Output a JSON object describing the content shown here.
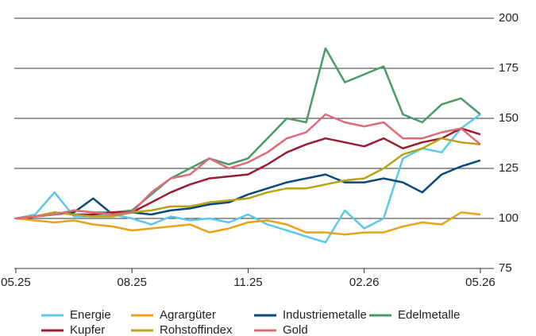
{
  "chart_data": {
    "type": "line",
    "x": [
      0,
      0.5,
      1,
      1.5,
      2,
      2.5,
      3,
      3.5,
      4,
      4.5,
      5,
      5.5,
      6,
      6.5,
      7,
      7.5,
      8,
      8.5,
      9,
      9.5,
      10,
      10.5,
      11,
      11.5,
      12
    ],
    "xlim": [
      -0.04,
      12.35
    ],
    "xticks": [
      {
        "value": 0,
        "label": "05.25"
      },
      {
        "value": 3,
        "label": "08.25"
      },
      {
        "value": 6,
        "label": "11.25"
      },
      {
        "value": 9,
        "label": "02.26"
      },
      {
        "value": 12,
        "label": "05.26"
      }
    ],
    "ylim": [
      75,
      200
    ],
    "yticks": [
      75,
      100,
      125,
      150,
      175,
      200
    ],
    "grid": true,
    "series": [
      {
        "name": "Energie",
        "color": "#5bc8ee",
        "values": [
          100,
          102,
          113,
          101,
          101,
          102,
          100,
          97,
          101,
          99,
          100,
          98,
          102,
          97,
          94,
          91,
          88,
          104,
          95,
          100,
          130,
          135,
          133,
          145,
          152
        ]
      },
      {
        "name": "Agrargüter",
        "color": "#e8a317",
        "values": [
          100,
          99,
          98,
          99,
          97,
          96,
          94,
          95,
          96,
          97,
          93,
          95,
          98,
          99,
          97,
          93,
          93,
          92,
          93,
          93,
          96,
          98,
          97,
          103,
          102
        ]
      },
      {
        "name": "Industriemetalle",
        "color": "#0a4a7a",
        "values": [
          100,
          101,
          102,
          103,
          110,
          102,
          103,
          102,
          104,
          105,
          107,
          108,
          112,
          115,
          118,
          120,
          122,
          118,
          118,
          120,
          118,
          113,
          122,
          126,
          129
        ]
      },
      {
        "name": "Edelmetalle",
        "color": "#4a9a6a",
        "values": [
          100,
          101,
          102,
          104,
          103,
          103,
          104,
          112,
          120,
          125,
          130,
          127,
          130,
          140,
          150,
          148,
          185,
          168,
          172,
          176,
          152,
          148,
          157,
          160,
          152
        ]
      },
      {
        "name": "Kupfer",
        "color": "#9b1b30",
        "values": [
          100,
          101,
          103,
          102,
          102,
          103,
          103,
          108,
          113,
          117,
          120,
          121,
          122,
          127,
          133,
          137,
          140,
          138,
          136,
          140,
          135,
          138,
          140,
          145,
          142
        ]
      },
      {
        "name": "Rohstoffindex",
        "color": "#b8a317",
        "values": [
          100,
          101,
          103,
          102,
          101,
          101,
          103,
          104,
          106,
          106,
          108,
          109,
          110,
          113,
          115,
          115,
          117,
          119,
          120,
          125,
          132,
          135,
          140,
          138,
          137
        ]
      },
      {
        "name": "Gold",
        "color": "#e06a78",
        "values": [
          100,
          101,
          102,
          104,
          103,
          102,
          103,
          113,
          120,
          122,
          130,
          125,
          128,
          133,
          140,
          143,
          152,
          148,
          146,
          148,
          140,
          140,
          143,
          145,
          137
        ]
      }
    ]
  }
}
